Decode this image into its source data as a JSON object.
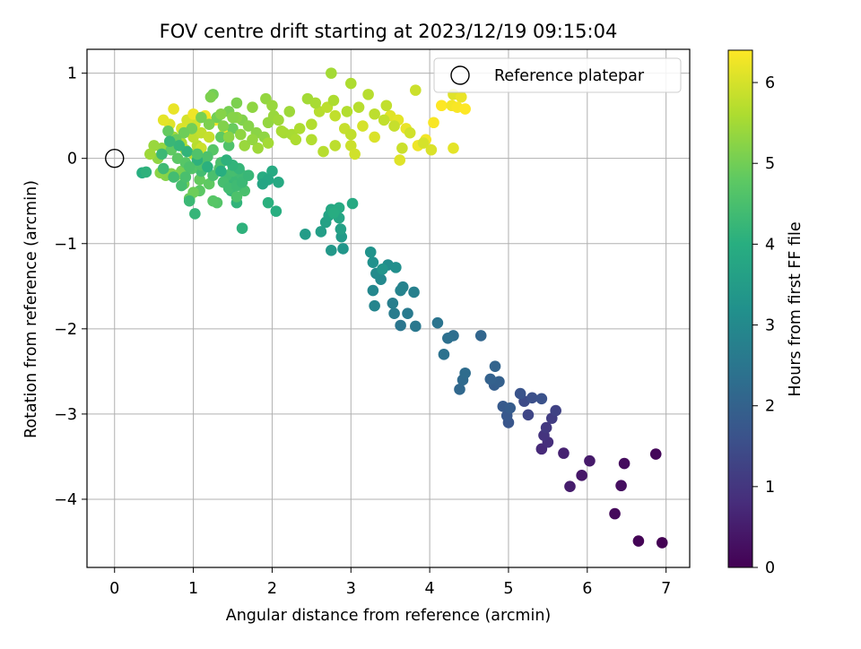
{
  "chart_data": {
    "type": "scatter",
    "title": "FOV centre drift starting at 2023/12/19 09:15:04",
    "xlabel": "Angular distance from reference (arcmin)",
    "ylabel": "Rotation from reference (arcmin)",
    "xlim": [
      -0.35,
      7.3
    ],
    "ylim": [
      -4.8,
      1.28
    ],
    "xticks": [
      0,
      1,
      2,
      3,
      4,
      5,
      6,
      7
    ],
    "yticks": [
      1,
      0,
      -1,
      -2,
      -3,
      -4
    ],
    "grid": true,
    "legend": {
      "placement": "top-right",
      "entries": [
        "Reference platepar"
      ]
    },
    "reference_point": {
      "x": 0,
      "y": 0,
      "marker": "open-circle"
    },
    "colorbar": {
      "label": "Hours from first FF file",
      "range": [
        0,
        6.4
      ],
      "ticks": [
        0,
        1,
        2,
        3,
        4,
        5,
        6
      ],
      "colormap": "viridis"
    },
    "series": [
      {
        "marker": "filled-circle",
        "points": [
          [
            6.95,
            -4.51,
            0.0
          ],
          [
            6.65,
            -4.49,
            0.05
          ],
          [
            6.87,
            -3.47,
            0.1
          ],
          [
            6.35,
            -4.17,
            0.15
          ],
          [
            6.47,
            -3.58,
            0.2
          ],
          [
            6.43,
            -3.84,
            0.25
          ],
          [
            5.93,
            -3.72,
            0.4
          ],
          [
            6.03,
            -3.55,
            0.45
          ],
          [
            5.78,
            -3.85,
            0.5
          ],
          [
            5.7,
            -3.46,
            0.6
          ],
          [
            5.42,
            -3.41,
            0.75
          ],
          [
            5.5,
            -3.33,
            0.85
          ],
          [
            5.45,
            -3.25,
            0.95
          ],
          [
            5.48,
            -3.16,
            1.05
          ],
          [
            5.55,
            -3.05,
            1.15
          ],
          [
            5.6,
            -2.96,
            1.25
          ],
          [
            5.25,
            -3.01,
            1.35
          ],
          [
            5.2,
            -2.85,
            1.45
          ],
          [
            5.3,
            -2.81,
            1.55
          ],
          [
            5.42,
            -2.82,
            1.6
          ],
          [
            5.15,
            -2.76,
            1.65
          ],
          [
            5.0,
            -3.1,
            1.7
          ],
          [
            4.98,
            -3.02,
            1.75
          ],
          [
            4.93,
            -2.91,
            1.8
          ],
          [
            5.02,
            -2.93,
            1.85
          ],
          [
            4.82,
            -2.66,
            1.9
          ],
          [
            4.88,
            -2.62,
            1.95
          ],
          [
            4.77,
            -2.59,
            2.0
          ],
          [
            4.83,
            -2.44,
            2.05
          ],
          [
            4.65,
            -2.08,
            2.1
          ],
          [
            4.38,
            -2.71,
            2.15
          ],
          [
            4.42,
            -2.6,
            2.2
          ],
          [
            4.45,
            -2.52,
            2.25
          ],
          [
            4.3,
            -2.08,
            2.3
          ],
          [
            4.23,
            -2.11,
            2.35
          ],
          [
            4.18,
            -2.3,
            2.4
          ],
          [
            4.1,
            -1.93,
            2.45
          ],
          [
            3.63,
            -1.96,
            2.5
          ],
          [
            3.82,
            -1.97,
            2.55
          ],
          [
            3.72,
            -1.82,
            2.6
          ],
          [
            3.55,
            -1.82,
            2.65
          ],
          [
            3.53,
            -1.7,
            2.7
          ],
          [
            3.8,
            -1.57,
            2.75
          ],
          [
            3.66,
            -1.51,
            2.8
          ],
          [
            3.63,
            -1.55,
            2.85
          ],
          [
            3.3,
            -1.73,
            2.9
          ],
          [
            3.28,
            -1.55,
            2.95
          ],
          [
            3.38,
            -1.42,
            3.0
          ],
          [
            3.32,
            -1.35,
            3.05
          ],
          [
            3.47,
            -1.25,
            3.1
          ],
          [
            3.57,
            -1.28,
            3.15
          ],
          [
            3.28,
            -1.22,
            3.2
          ],
          [
            3.25,
            -1.1,
            3.25
          ],
          [
            3.4,
            -1.3,
            3.3
          ],
          [
            2.9,
            -1.06,
            3.35
          ],
          [
            2.75,
            -1.08,
            3.4
          ],
          [
            2.88,
            -0.92,
            3.45
          ],
          [
            2.42,
            -0.89,
            3.5
          ],
          [
            2.62,
            -0.86,
            3.55
          ],
          [
            2.87,
            -0.83,
            3.6
          ],
          [
            2.68,
            -0.75,
            3.65
          ],
          [
            2.72,
            -0.67,
            3.7
          ],
          [
            2.85,
            -0.7,
            3.75
          ],
          [
            2.75,
            -0.6,
            3.8
          ],
          [
            3.02,
            -0.53,
            3.85
          ],
          [
            2.85,
            -0.58,
            3.9
          ],
          [
            2.78,
            -0.64,
            3.95
          ],
          [
            2.05,
            -0.62,
            4.0
          ],
          [
            1.95,
            -0.52,
            4.05
          ],
          [
            1.62,
            -0.82,
            4.1
          ],
          [
            1.55,
            -0.52,
            4.15
          ],
          [
            1.48,
            -0.38,
            4.2
          ],
          [
            1.5,
            -0.3,
            4.25
          ],
          [
            1.52,
            -0.22,
            4.3
          ],
          [
            1.6,
            -0.18,
            4.35
          ],
          [
            1.42,
            -0.2,
            4.4
          ],
          [
            1.5,
            -0.15,
            4.45
          ],
          [
            1.65,
            -0.38,
            4.5
          ],
          [
            1.55,
            -0.45,
            4.55
          ],
          [
            1.33,
            -0.12,
            4.6
          ],
          [
            1.3,
            -0.52,
            4.65
          ],
          [
            1.25,
            -0.5,
            4.7
          ],
          [
            1.08,
            -0.38,
            4.75
          ],
          [
            1.2,
            -0.3,
            4.8
          ],
          [
            1.08,
            -0.25,
            4.85
          ],
          [
            0.95,
            -0.47,
            4.9
          ],
          [
            1.0,
            -0.4,
            4.95
          ],
          [
            0.88,
            -0.3,
            5.0
          ],
          [
            0.85,
            -0.15,
            5.05
          ],
          [
            0.78,
            -0.2,
            5.1
          ],
          [
            0.72,
            -0.18,
            5.15
          ],
          [
            0.65,
            -0.2,
            5.2
          ],
          [
            0.58,
            -0.17,
            5.25
          ],
          [
            0.55,
            0.0,
            5.3
          ],
          [
            0.6,
            0.12,
            5.35
          ],
          [
            0.5,
            0.15,
            5.4
          ],
          [
            0.45,
            0.05,
            5.45
          ],
          [
            0.75,
            0.25,
            5.5
          ],
          [
            0.85,
            0.18,
            5.55
          ],
          [
            0.9,
            0.1,
            5.6
          ],
          [
            1.0,
            0.05,
            5.65
          ],
          [
            1.05,
            0.15,
            5.7
          ],
          [
            1.0,
            0.25,
            5.75
          ],
          [
            1.1,
            0.3,
            5.8
          ],
          [
            1.2,
            0.25,
            5.85
          ],
          [
            1.1,
            0.12,
            5.9
          ],
          [
            1.02,
            0.4,
            5.95
          ],
          [
            0.92,
            0.45,
            6.0
          ],
          [
            0.85,
            0.35,
            6.05
          ],
          [
            0.7,
            0.4,
            6.1
          ],
          [
            0.62,
            0.45,
            6.15
          ],
          [
            0.75,
            0.58,
            6.2
          ],
          [
            1.0,
            0.52,
            6.25
          ],
          [
            1.15,
            0.5,
            6.3
          ],
          [
            1.28,
            0.45,
            6.35
          ],
          [
            1.4,
            0.32,
            6.4
          ],
          [
            0.35,
            -0.17,
            4.0
          ],
          [
            0.4,
            -0.16,
            4.1
          ],
          [
            1.02,
            -0.65,
            4.2
          ],
          [
            0.95,
            -0.5,
            4.3
          ],
          [
            1.1,
            -0.15,
            4.4
          ],
          [
            1.35,
            -0.05,
            4.5
          ],
          [
            1.45,
            0.15,
            4.6
          ],
          [
            1.25,
            0.1,
            4.7
          ],
          [
            1.35,
            0.25,
            4.8
          ],
          [
            1.5,
            0.35,
            4.9
          ],
          [
            1.3,
            0.48,
            5.0
          ],
          [
            1.45,
            0.55,
            5.05
          ],
          [
            1.55,
            0.65,
            5.1
          ],
          [
            1.62,
            0.45,
            5.15
          ],
          [
            1.7,
            0.38,
            5.2
          ],
          [
            1.8,
            0.3,
            5.25
          ],
          [
            1.9,
            0.25,
            5.3
          ],
          [
            1.95,
            0.42,
            5.35
          ],
          [
            2.02,
            0.5,
            5.4
          ],
          [
            2.08,
            0.45,
            5.45
          ],
          [
            2.15,
            0.3,
            5.5
          ],
          [
            2.25,
            0.28,
            5.55
          ],
          [
            2.35,
            0.35,
            5.6
          ],
          [
            2.5,
            0.4,
            5.65
          ],
          [
            2.6,
            0.55,
            5.7
          ],
          [
            2.7,
            0.6,
            5.75
          ],
          [
            2.8,
            0.5,
            5.8
          ],
          [
            2.92,
            0.35,
            5.85
          ],
          [
            3.0,
            0.15,
            5.9
          ],
          [
            3.05,
            0.05,
            5.95
          ],
          [
            3.15,
            0.38,
            6.0
          ],
          [
            3.3,
            0.25,
            6.05
          ],
          [
            3.5,
            0.5,
            6.1
          ],
          [
            3.6,
            0.45,
            6.15
          ],
          [
            3.7,
            0.35,
            6.2
          ],
          [
            3.85,
            0.15,
            6.25
          ],
          [
            3.95,
            0.22,
            6.3
          ],
          [
            4.05,
            0.42,
            6.35
          ],
          [
            4.15,
            0.62,
            6.4
          ],
          [
            2.75,
            1.0,
            5.5
          ],
          [
            3.0,
            0.88,
            5.6
          ],
          [
            3.22,
            0.75,
            5.7
          ],
          [
            3.45,
            0.62,
            5.8
          ],
          [
            3.82,
            0.8,
            5.9
          ],
          [
            4.3,
            0.75,
            6.1
          ],
          [
            4.4,
            0.72,
            6.2
          ],
          [
            4.28,
            0.62,
            6.3
          ],
          [
            4.35,
            0.6,
            6.35
          ],
          [
            4.45,
            0.58,
            6.4
          ],
          [
            1.25,
            0.75,
            5.0
          ],
          [
            1.22,
            0.72,
            5.1
          ],
          [
            1.35,
            0.52,
            5.2
          ],
          [
            1.55,
            0.48,
            5.25
          ],
          [
            1.75,
            0.6,
            5.3
          ],
          [
            1.92,
            0.7,
            5.35
          ],
          [
            2.0,
            0.62,
            5.4
          ],
          [
            2.22,
            0.55,
            5.45
          ],
          [
            2.45,
            0.7,
            5.5
          ],
          [
            2.55,
            0.65,
            5.55
          ],
          [
            2.78,
            0.68,
            5.6
          ],
          [
            2.95,
            0.55,
            5.65
          ],
          [
            3.1,
            0.6,
            5.7
          ],
          [
            3.3,
            0.52,
            5.75
          ],
          [
            3.42,
            0.45,
            5.8
          ],
          [
            3.55,
            0.38,
            5.85
          ],
          [
            3.65,
            0.12,
            5.9
          ],
          [
            3.75,
            0.3,
            5.95
          ],
          [
            3.92,
            0.18,
            6.0
          ],
          [
            4.02,
            0.1,
            6.05
          ],
          [
            4.3,
            0.12,
            6.15
          ],
          [
            3.62,
            -0.02,
            6.1
          ],
          [
            3.0,
            0.28,
            5.8
          ],
          [
            2.8,
            0.15,
            5.75
          ],
          [
            2.65,
            0.08,
            5.7
          ],
          [
            2.5,
            0.22,
            5.65
          ],
          [
            2.3,
            0.22,
            5.6
          ],
          [
            2.12,
            0.32,
            5.55
          ],
          [
            1.95,
            0.18,
            5.5
          ],
          [
            1.82,
            0.12,
            5.45
          ],
          [
            1.65,
            0.15,
            5.4
          ],
          [
            1.75,
            0.22,
            5.35
          ],
          [
            1.6,
            0.28,
            5.3
          ],
          [
            1.45,
            0.25,
            5.25
          ],
          [
            1.5,
            0.48,
            5.2
          ],
          [
            1.38,
            0.38,
            5.15
          ],
          [
            1.2,
            0.4,
            5.1
          ],
          [
            1.1,
            0.48,
            5.05
          ],
          [
            0.98,
            0.35,
            5.0
          ],
          [
            0.88,
            0.3,
            4.95
          ],
          [
            0.78,
            0.22,
            4.9
          ],
          [
            0.68,
            0.32,
            4.85
          ],
          [
            0.72,
            0.1,
            4.8
          ],
          [
            0.8,
            0.0,
            4.75
          ],
          [
            0.9,
            -0.05,
            4.7
          ],
          [
            0.98,
            -0.12,
            4.65
          ],
          [
            1.1,
            -0.08,
            4.6
          ],
          [
            1.18,
            0.02,
            4.55
          ],
          [
            1.25,
            -0.2,
            4.5
          ],
          [
            1.38,
            -0.28,
            4.45
          ],
          [
            1.45,
            -0.35,
            4.4
          ],
          [
            1.55,
            -0.32,
            4.35
          ],
          [
            1.62,
            -0.28,
            4.3
          ],
          [
            1.7,
            -0.2,
            4.25
          ],
          [
            1.58,
            -0.12,
            4.2
          ],
          [
            1.5,
            -0.08,
            4.15
          ],
          [
            1.42,
            -0.02,
            4.1
          ],
          [
            1.88,
            -0.22,
            3.95
          ],
          [
            2.0,
            -0.15,
            3.9
          ],
          [
            2.08,
            -0.28,
            3.85
          ],
          [
            1.95,
            -0.25,
            3.8
          ],
          [
            1.88,
            -0.3,
            3.75
          ],
          [
            1.35,
            -0.15,
            4.0
          ],
          [
            1.18,
            -0.1,
            4.05
          ],
          [
            1.05,
            -0.02,
            4.1
          ],
          [
            0.92,
            0.08,
            4.15
          ],
          [
            0.82,
            0.15,
            4.2
          ],
          [
            0.7,
            0.2,
            4.25
          ],
          [
            0.6,
            0.05,
            4.3
          ],
          [
            0.62,
            -0.12,
            4.35
          ],
          [
            0.75,
            -0.22,
            4.4
          ],
          [
            0.85,
            -0.32,
            4.45
          ],
          [
            0.9,
            -0.22,
            4.5
          ],
          [
            0.95,
            -0.1,
            4.55
          ],
          [
            1.05,
            0.05,
            4.6
          ]
        ]
      }
    ]
  }
}
